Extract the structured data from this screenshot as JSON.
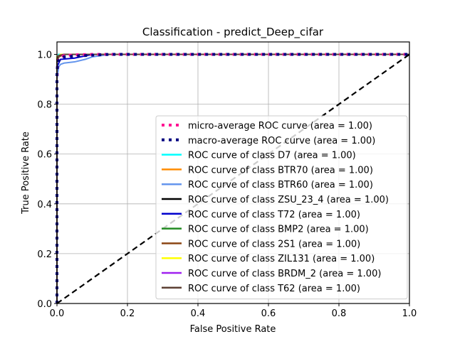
{
  "chart_data": {
    "type": "line",
    "title": "Classification - predict_Deep_cifar",
    "xlabel": "False Positive Rate",
    "ylabel": "True Positive Rate",
    "xlim": [
      0.0,
      1.0
    ],
    "ylim": [
      0.0,
      1.05
    ],
    "xticks": [
      "0.0",
      "0.2",
      "0.4",
      "0.6",
      "0.8",
      "1.0"
    ],
    "xtick_values": [
      0.0,
      0.2,
      0.4,
      0.6,
      0.8,
      1.0
    ],
    "yticks": [
      "0.0",
      "0.2",
      "0.4",
      "0.6",
      "0.8",
      "1.0"
    ],
    "ytick_values": [
      0.0,
      0.2,
      0.4,
      0.6,
      0.8,
      1.0
    ],
    "grid": true,
    "legend_position": "lower-right",
    "series": [
      {
        "name": "micro-average ROC curve (area = 1.00)",
        "color": "#ff1493",
        "style": "dotted",
        "x": [
          0.0,
          0.0,
          0.002,
          0.005,
          0.01,
          0.02,
          0.05,
          0.1,
          1.0
        ],
        "y": [
          0.0,
          0.9,
          0.96,
          0.98,
          0.99,
          0.995,
          0.998,
          1.0,
          1.0
        ]
      },
      {
        "name": "macro-average ROC curve (area = 1.00)",
        "color": "#000080",
        "style": "dotted",
        "x": [
          0.0,
          0.0,
          0.003,
          0.01,
          0.02,
          0.05,
          0.1,
          0.15,
          1.0
        ],
        "y": [
          0.0,
          0.93,
          0.97,
          0.985,
          0.99,
          0.993,
          0.997,
          1.0,
          1.0
        ]
      },
      {
        "name": "ROC curve of class D7 (area = 1.00)",
        "color": "#00ffff",
        "style": "solid",
        "x": [
          0.0,
          0.0,
          0.005,
          0.02,
          1.0
        ],
        "y": [
          0.0,
          0.99,
          1.0,
          1.0,
          1.0
        ]
      },
      {
        "name": "ROC curve of class BTR70 (area = 1.00)",
        "color": "#ff8c00",
        "style": "solid",
        "x": [
          0.0,
          0.0,
          0.005,
          0.02,
          1.0
        ],
        "y": [
          0.0,
          0.98,
          0.995,
          1.0,
          1.0
        ]
      },
      {
        "name": "ROC curve of class BTR60 (area = 1.00)",
        "color": "#6495ed",
        "style": "solid",
        "x": [
          0.0,
          0.0,
          0.005,
          0.01,
          0.02,
          0.05,
          0.08,
          0.1,
          0.15,
          1.0
        ],
        "y": [
          0.0,
          0.9,
          0.95,
          0.96,
          0.965,
          0.97,
          0.98,
          0.99,
          1.0,
          1.0
        ]
      },
      {
        "name": "ROC curve of class ZSU_23_4 (area = 1.00)",
        "color": "#000000",
        "style": "solid",
        "x": [
          0.0,
          0.0,
          0.005,
          0.02,
          1.0
        ],
        "y": [
          0.0,
          0.97,
          0.99,
          1.0,
          1.0
        ]
      },
      {
        "name": "ROC curve of class T72 (area = 1.00)",
        "color": "#0000cd",
        "style": "solid",
        "x": [
          0.0,
          0.0,
          0.01,
          0.05,
          0.1,
          1.0
        ],
        "y": [
          0.0,
          0.95,
          0.98,
          0.985,
          1.0,
          1.0
        ]
      },
      {
        "name": "ROC curve of class BMP2 (area = 1.00)",
        "color": "#228b22",
        "style": "solid",
        "x": [
          0.0,
          0.0,
          0.005,
          0.02,
          1.0
        ],
        "y": [
          0.0,
          0.98,
          0.995,
          1.0,
          1.0
        ]
      },
      {
        "name": "ROC curve of class 2S1 (area = 1.00)",
        "color": "#8b4513",
        "style": "solid",
        "x": [
          0.0,
          0.0,
          0.005,
          0.02,
          1.0
        ],
        "y": [
          0.0,
          0.97,
          0.99,
          1.0,
          1.0
        ]
      },
      {
        "name": "ROC curve of class ZIL131 (area = 1.00)",
        "color": "#ffff00",
        "style": "solid",
        "x": [
          0.0,
          0.0,
          0.01,
          1.0
        ],
        "y": [
          0.0,
          0.99,
          1.0,
          1.0
        ]
      },
      {
        "name": "ROC curve of class BRDM_2 (area = 1.00)",
        "color": "#a020f0",
        "style": "solid",
        "x": [
          0.0,
          0.0,
          0.005,
          0.02,
          1.0
        ],
        "y": [
          0.0,
          0.98,
          0.995,
          1.0,
          1.0
        ]
      },
      {
        "name": "ROC curve of class T62 (area = 1.00)",
        "color": "#5c4033",
        "style": "solid",
        "x": [
          0.0,
          0.0,
          0.005,
          0.02,
          1.0
        ],
        "y": [
          0.0,
          0.98,
          0.995,
          1.0,
          1.0
        ]
      }
    ],
    "reference_line": {
      "x": [
        0.0,
        1.0
      ],
      "y": [
        0.0,
        1.0
      ],
      "color": "#000000",
      "style": "dashed"
    }
  }
}
